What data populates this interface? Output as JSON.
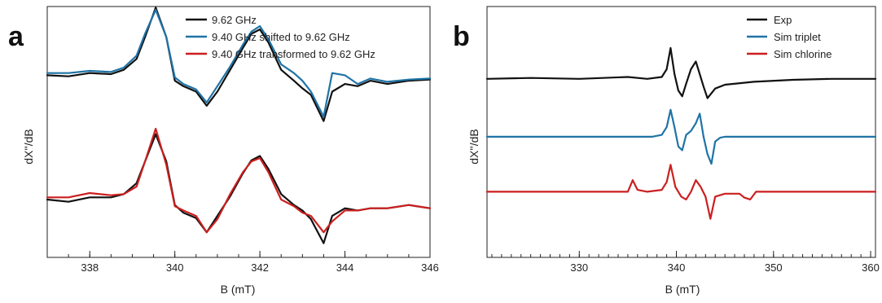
{
  "chart_data": [
    {
      "panel": "a",
      "type": "line",
      "xlabel": "B (mT)",
      "ylabel": "dX''/dB",
      "xlim": [
        337,
        346
      ],
      "xticks": [
        338,
        340,
        342,
        344,
        346
      ],
      "xminor_step": 0.5,
      "ylim": [
        -1.15,
        1.15
      ],
      "legend": "top",
      "grid": false,
      "series": [
        {
          "name": "9.62 GHz",
          "color": "#111111",
          "offset": 0.52,
          "x": [
            337,
            337.5,
            338,
            338.5,
            338.8,
            339.1,
            339.3,
            339.55,
            339.8,
            340.0,
            340.2,
            340.5,
            340.75,
            341.0,
            341.3,
            341.6,
            341.8,
            342.0,
            342.2,
            342.5,
            342.8,
            343.0,
            343.2,
            343.5,
            343.7,
            344.0,
            344.3,
            344.6,
            345.0,
            345.5,
            346.0
          ],
          "y": [
            0.0,
            -0.01,
            0.02,
            0.01,
            0.05,
            0.15,
            0.35,
            0.62,
            0.35,
            -0.05,
            -0.1,
            -0.15,
            -0.28,
            -0.15,
            0.05,
            0.25,
            0.38,
            0.42,
            0.3,
            0.05,
            -0.05,
            -0.12,
            -0.18,
            -0.42,
            -0.15,
            -0.08,
            -0.1,
            -0.05,
            -0.08,
            -0.05,
            -0.04
          ]
        },
        {
          "name": "9.40 GHz shifted to 9.62 GHz",
          "color": "#1f73a6",
          "offset": 0.52,
          "x": [
            337,
            337.5,
            338,
            338.5,
            338.8,
            339.1,
            339.3,
            339.55,
            339.8,
            340.0,
            340.2,
            340.5,
            340.75,
            341.0,
            341.3,
            341.6,
            341.8,
            342.0,
            342.2,
            342.5,
            342.8,
            343.0,
            343.2,
            343.5,
            343.7,
            344.0,
            344.3,
            344.6,
            345.0,
            345.5,
            346.0
          ],
          "y": [
            0.02,
            0.02,
            0.04,
            0.03,
            0.07,
            0.18,
            0.38,
            0.6,
            0.35,
            -0.02,
            -0.08,
            -0.13,
            -0.25,
            -0.1,
            0.08,
            0.28,
            0.4,
            0.45,
            0.33,
            0.1,
            0.02,
            -0.05,
            -0.15,
            -0.38,
            0.02,
            0.0,
            -0.08,
            -0.03,
            -0.06,
            -0.04,
            -0.03
          ]
        },
        {
          "name": "9.62 GHz",
          "color": "#111111",
          "offset": -0.62,
          "x": [
            337,
            337.5,
            338,
            338.5,
            338.8,
            339.1,
            339.3,
            339.55,
            339.8,
            340.0,
            340.2,
            340.5,
            340.75,
            341.0,
            341.3,
            341.6,
            341.8,
            342.0,
            342.2,
            342.5,
            342.8,
            343.0,
            343.2,
            343.5,
            343.7,
            344.0,
            344.3,
            344.6,
            345.0,
            345.5,
            346.0
          ],
          "y": [
            0.0,
            -0.02,
            0.02,
            0.02,
            0.05,
            0.15,
            0.35,
            0.6,
            0.35,
            -0.05,
            -0.12,
            -0.17,
            -0.3,
            -0.15,
            0.03,
            0.24,
            0.36,
            0.4,
            0.28,
            0.05,
            -0.05,
            -0.1,
            -0.18,
            -0.4,
            -0.15,
            -0.08,
            -0.1,
            -0.08,
            -0.08,
            -0.05,
            -0.08
          ]
        },
        {
          "name": "9.40 GHz transformed to 9.62 GHz",
          "color": "#cc1f1f",
          "offset": -0.62,
          "x": [
            337,
            337.5,
            338,
            338.5,
            338.8,
            339.1,
            339.3,
            339.55,
            339.8,
            340.0,
            340.2,
            340.5,
            340.75,
            341.0,
            341.3,
            341.6,
            341.8,
            342.0,
            342.2,
            342.5,
            342.8,
            343.0,
            343.2,
            343.5,
            343.7,
            344.0,
            344.3,
            344.6,
            345.0,
            345.5,
            346.0
          ],
          "y": [
            0.02,
            0.02,
            0.06,
            0.04,
            0.05,
            0.12,
            0.35,
            0.65,
            0.32,
            -0.06,
            -0.1,
            -0.15,
            -0.3,
            -0.18,
            0.05,
            0.25,
            0.35,
            0.38,
            0.25,
            0.0,
            -0.06,
            -0.12,
            -0.15,
            -0.3,
            -0.2,
            -0.1,
            -0.1,
            -0.08,
            -0.08,
            -0.05,
            -0.08
          ]
        }
      ]
    },
    {
      "panel": "b",
      "type": "line",
      "xlabel": "B (mT)",
      "ylabel": "dX''/dB",
      "xlim": [
        320.5,
        360.5
      ],
      "xticks": [
        330,
        340,
        350,
        360
      ],
      "xminor_step": 1,
      "ylim": [
        -1.3,
        1.3
      ],
      "legend": "top-right",
      "grid": false,
      "series": [
        {
          "name": "Exp",
          "color": "#111111",
          "offset": 0.55,
          "x": [
            320.5,
            325,
            330,
            335,
            337,
            338.5,
            339.0,
            339.4,
            339.8,
            340.2,
            340.6,
            341.0,
            341.5,
            342.0,
            342.4,
            342.8,
            343.2,
            343.6,
            344.0,
            345,
            348,
            352,
            356,
            360.5
          ],
          "y": [
            0.0,
            0.01,
            0.0,
            0.02,
            0.0,
            0.02,
            0.1,
            0.32,
            0.05,
            -0.12,
            -0.18,
            -0.05,
            0.1,
            0.18,
            0.05,
            -0.08,
            -0.2,
            -0.15,
            -0.1,
            -0.06,
            -0.03,
            -0.01,
            0.0,
            0.0
          ]
        },
        {
          "name": "Sim triplet",
          "color": "#1f73a6",
          "offset": -0.05,
          "x": [
            320.5,
            335,
            337.5,
            338.5,
            339.0,
            339.4,
            339.8,
            340.2,
            340.6,
            341.0,
            341.5,
            342.0,
            342.4,
            342.8,
            343.2,
            343.6,
            344.0,
            344.5,
            345,
            350,
            360.5
          ],
          "y": [
            0.0,
            0.0,
            0.0,
            0.02,
            0.1,
            0.28,
            0.1,
            -0.1,
            -0.14,
            0.02,
            0.06,
            0.14,
            0.24,
            0.0,
            -0.18,
            -0.28,
            -0.05,
            -0.01,
            0.0,
            0.0,
            0.0
          ]
        },
        {
          "name": "Sim chlorine",
          "color": "#cc1f1f",
          "offset": -0.62,
          "x": [
            320.5,
            334,
            335.0,
            335.5,
            336.0,
            337.0,
            338.5,
            339.0,
            339.4,
            339.9,
            340.5,
            341.0,
            341.5,
            342.0,
            342.5,
            343.0,
            343.5,
            344.0,
            345.0,
            346.5,
            347.0,
            347.6,
            348.2,
            350,
            360.5
          ],
          "y": [
            0.0,
            0.0,
            0.0,
            0.12,
            0.02,
            0.0,
            0.02,
            0.1,
            0.28,
            0.05,
            -0.05,
            -0.08,
            0.0,
            0.12,
            0.05,
            -0.05,
            -0.28,
            -0.05,
            -0.02,
            -0.02,
            -0.06,
            -0.08,
            0.0,
            0.0,
            0.0
          ]
        }
      ]
    }
  ],
  "legends": [
    [
      "9.62 GHz",
      "9.40 GHz shifted to 9.62 GHz",
      "9.40 GHz transformed to 9.62 GHz"
    ],
    [
      "Exp",
      "Sim triplet",
      "Sim chlorine"
    ]
  ],
  "colors": {
    "black": "#111111",
    "blue": "#1f73a6",
    "red": "#cc1f1f"
  }
}
